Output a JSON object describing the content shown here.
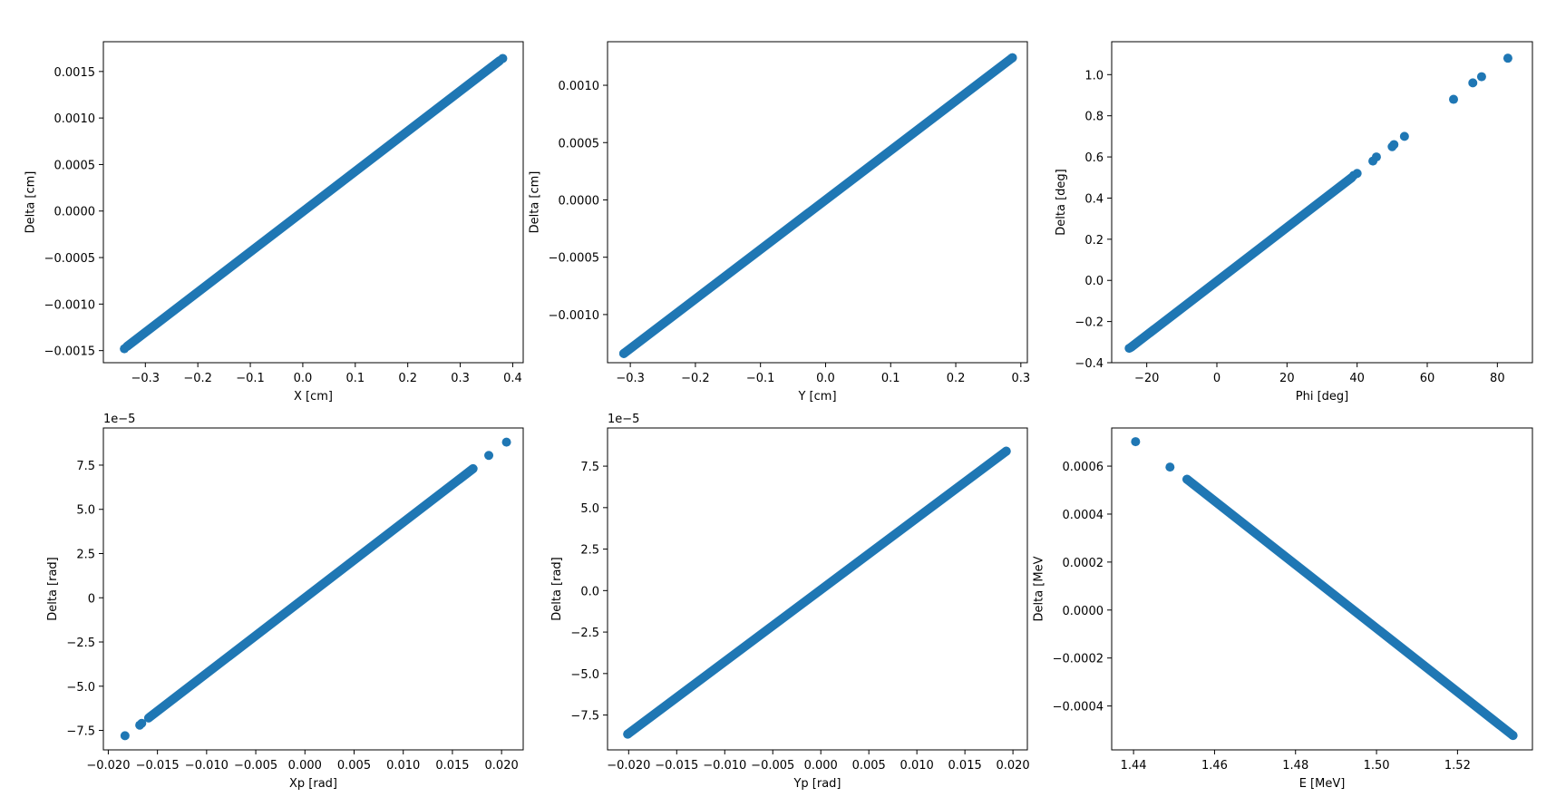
{
  "style": {
    "marker_color": "#1f77b4",
    "axis_color": "#000000",
    "background": "#ffffff"
  },
  "chart_data": [
    {
      "type": "scatter",
      "xlabel": "X [cm]",
      "ylabel": "Delta [cm]",
      "xlim": [
        -0.38,
        0.42
      ],
      "ylim": [
        -0.00163,
        0.00182
      ],
      "xticks": [
        -0.3,
        -0.2,
        -0.1,
        0.0,
        0.1,
        0.2,
        0.3,
        0.4
      ],
      "xtick_labels": [
        "−0.3",
        "−0.2",
        "−0.1",
        "0.0",
        "0.1",
        "0.2",
        "0.3",
        "0.4"
      ],
      "yticks": [
        -0.0015,
        -0.001,
        -0.0005,
        0.0,
        0.0005,
        0.001,
        0.0015
      ],
      "ytick_labels": [
        "−0.0015",
        "−0.0010",
        "−0.0005",
        "0.0000",
        "0.0005",
        "0.0010",
        "0.0015"
      ],
      "offset_text": "",
      "grid": false,
      "series": [
        {
          "points": [
            [
              -0.34,
              -0.00148
            ],
            [
              0.381,
              0.00164
            ]
          ],
          "dense_segments": [
            [
              -0.335,
              -0.001455,
              0.375,
              0.001615
            ]
          ]
        }
      ]
    },
    {
      "type": "scatter",
      "xlabel": "Y [cm]",
      "ylabel": "Delta [cm]",
      "xlim": [
        -0.335,
        0.31
      ],
      "ylim": [
        -0.00142,
        0.00138
      ],
      "xticks": [
        -0.3,
        -0.2,
        -0.1,
        0.0,
        0.1,
        0.2,
        0.3
      ],
      "xtick_labels": [
        "−0.3",
        "−0.2",
        "−0.1",
        "0.0",
        "0.1",
        "0.2",
        "0.3"
      ],
      "yticks": [
        -0.001,
        -0.0005,
        0.0,
        0.0005,
        0.001
      ],
      "ytick_labels": [
        "−0.0010",
        "−0.0005",
        "0.0000",
        "0.0005",
        "0.0010"
      ],
      "offset_text": "",
      "grid": false,
      "series": [
        {
          "points": [
            [
              -0.31,
              -0.00134
            ],
            [
              0.287,
              0.00124
            ]
          ],
          "dense_segments": [
            [
              -0.31,
              -0.00134,
              0.287,
              0.00124
            ]
          ]
        }
      ]
    },
    {
      "type": "scatter",
      "xlabel": "Phi [deg]",
      "ylabel": "Delta [deg]",
      "xlim": [
        -30,
        90
      ],
      "ylim": [
        -0.4,
        1.16
      ],
      "xticks": [
        -20,
        0,
        20,
        40,
        60,
        80
      ],
      "xtick_labels": [
        "−20",
        "0",
        "20",
        "40",
        "60",
        "80"
      ],
      "yticks": [
        -0.4,
        -0.2,
        0.0,
        0.2,
        0.4,
        0.6,
        0.8,
        1.0
      ],
      "ytick_labels": [
        "−0.4",
        "−0.2",
        "0.0",
        "0.2",
        "0.4",
        "0.6",
        "0.8",
        "1.0"
      ],
      "offset_text": "",
      "grid": false,
      "series": [
        {
          "points": [
            [
              -25,
              -0.33
            ],
            [
              39,
              0.51
            ],
            [
              40,
              0.52
            ],
            [
              44.5,
              0.58
            ],
            [
              45.5,
              0.6
            ],
            [
              50,
              0.65
            ],
            [
              50.5,
              0.66
            ],
            [
              53.5,
              0.7
            ],
            [
              67.5,
              0.88
            ],
            [
              73,
              0.96
            ],
            [
              75.5,
              0.99
            ],
            [
              83,
              1.08
            ]
          ],
          "dense_segments": [
            [
              -24.5,
              -0.325,
              38.5,
              0.5
            ]
          ]
        }
      ]
    },
    {
      "type": "scatter",
      "xlabel": "Xp [rad]",
      "ylabel": "Delta [rad]",
      "xlim": [
        -0.0205,
        0.0222
      ],
      "ylim": [
        -8.6,
        9.6
      ],
      "xticks": [
        -0.02,
        -0.015,
        -0.01,
        -0.005,
        0.0,
        0.005,
        0.01,
        0.015,
        0.02
      ],
      "xtick_labels": [
        "−0.020",
        "−0.015",
        "−0.010",
        "−0.005",
        "0.000",
        "0.005",
        "0.010",
        "0.015",
        "0.020"
      ],
      "yticks": [
        -7.5,
        -5.0,
        -2.5,
        0.0,
        2.5,
        5.0,
        7.5
      ],
      "ytick_labels": [
        "−7.5",
        "−5.0",
        "−2.5",
        "0",
        "2.5",
        "5.0",
        "7.5"
      ],
      "offset_text": "1e−5",
      "grid": false,
      "series": [
        {
          "points": [
            [
              -0.0183,
              -7.8
            ],
            [
              -0.0168,
              -7.2
            ],
            [
              -0.0166,
              -7.1
            ],
            [
              -0.0159,
              -6.8
            ],
            [
              0.0187,
              8.05
            ],
            [
              0.0205,
              8.8
            ]
          ],
          "dense_segments": [
            [
              -0.0158,
              -6.75,
              0.0171,
              7.3
            ]
          ]
        }
      ]
    },
    {
      "type": "scatter",
      "xlabel": "Yp [rad]",
      "ylabel": "Delta [rad]",
      "xlim": [
        -0.0222,
        0.0215
      ],
      "ylim": [
        -9.6,
        9.8
      ],
      "xticks": [
        -0.02,
        -0.015,
        -0.01,
        -0.005,
        0.0,
        0.005,
        0.01,
        0.015,
        0.02
      ],
      "xtick_labels": [
        "−0.020",
        "−0.015",
        "−0.010",
        "−0.005",
        "0.000",
        "0.005",
        "0.010",
        "0.015",
        "0.020"
      ],
      "yticks": [
        -7.5,
        -5.0,
        -2.5,
        0.0,
        2.5,
        5.0,
        7.5
      ],
      "ytick_labels": [
        "−7.5",
        "−5.0",
        "−2.5",
        "0.0",
        "2.5",
        "5.0",
        "7.5"
      ],
      "offset_text": "1e−5",
      "grid": false,
      "series": [
        {
          "points": [
            [
              -0.0201,
              -8.65
            ],
            [
              0.0193,
              8.4
            ]
          ],
          "dense_segments": [
            [
              -0.0201,
              -8.65,
              0.0193,
              8.4
            ]
          ]
        }
      ]
    },
    {
      "type": "scatter",
      "xlabel": "E [MeV]",
      "ylabel": "Delta [MeV",
      "xlim": [
        1.4346,
        1.5385
      ],
      "ylim": [
        -0.000583,
        0.000759
      ],
      "xticks": [
        1.44,
        1.46,
        1.48,
        1.5,
        1.52
      ],
      "xtick_labels": [
        "1.44",
        "1.46",
        "1.48",
        "1.50",
        "1.52"
      ],
      "yticks": [
        -0.0004,
        -0.0002,
        0.0,
        0.0002,
        0.0004,
        0.0006
      ],
      "ytick_labels": [
        "−0.0004",
        "−0.0002",
        "0.0000",
        "0.0002",
        "0.0004",
        "0.0006"
      ],
      "offset_text": "",
      "grid": false,
      "series": [
        {
          "points": [
            [
              1.4405,
              0.000702
            ],
            [
              1.449,
              0.000596
            ],
            [
              1.4532,
              0.000545
            ],
            [
              1.5337,
              -0.000523
            ]
          ],
          "dense_segments": [
            [
              1.4532,
              0.000545,
              1.5337,
              -0.000523
            ]
          ]
        }
      ]
    }
  ]
}
